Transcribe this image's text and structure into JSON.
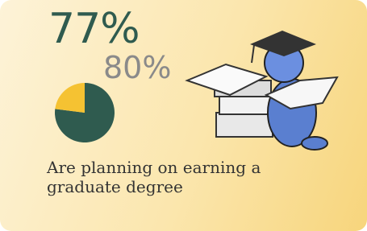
{
  "primary_stat": {
    "value": 77,
    "label": "77%"
  },
  "secondary_stat": {
    "value": 80,
    "label": "80%"
  },
  "caption": "Are planning on earning a graduate degree"
}
